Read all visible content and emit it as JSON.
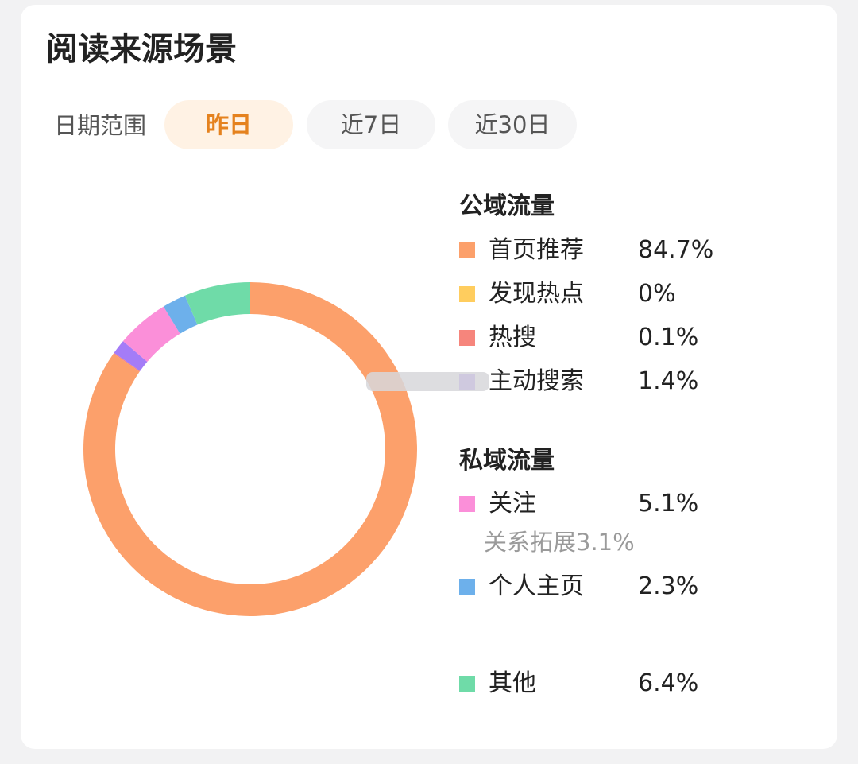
{
  "title": "阅读来源场景",
  "date_range": {
    "label": "日期范围",
    "options": [
      "昨日",
      "近7日",
      "近30日"
    ],
    "selected": 0
  },
  "legend": {
    "public_section": "公域流量",
    "private_section": "私域流量",
    "sub_note": "关系拓展3.1%"
  },
  "chart_data": {
    "type": "pie",
    "donut": true,
    "legend_position": "right",
    "categories": [
      "首页推荐",
      "发现热点",
      "热搜",
      "主动搜索",
      "关注",
      "个人主页",
      "其他"
    ],
    "values": [
      84.7,
      0,
      0.1,
      1.4,
      5.1,
      2.3,
      6.4
    ],
    "value_labels": [
      "84.7%",
      "0%",
      "0.1%",
      "1.4%",
      "5.1%",
      "2.3%",
      "6.4%"
    ],
    "colors": [
      "#fca06b",
      "#ffcd5e",
      "#f6857c",
      "#a47cf7",
      "#fb8fd9",
      "#6db0eb",
      "#6fdba8"
    ],
    "groups": {
      "公域流量": [
        0,
        1,
        2,
        3
      ],
      "私域流量": [
        4,
        5
      ],
      "other": [
        6
      ]
    },
    "sub_items": [
      {
        "parent": "关注",
        "label": "关系拓展",
        "value": 3.1
      }
    ]
  }
}
